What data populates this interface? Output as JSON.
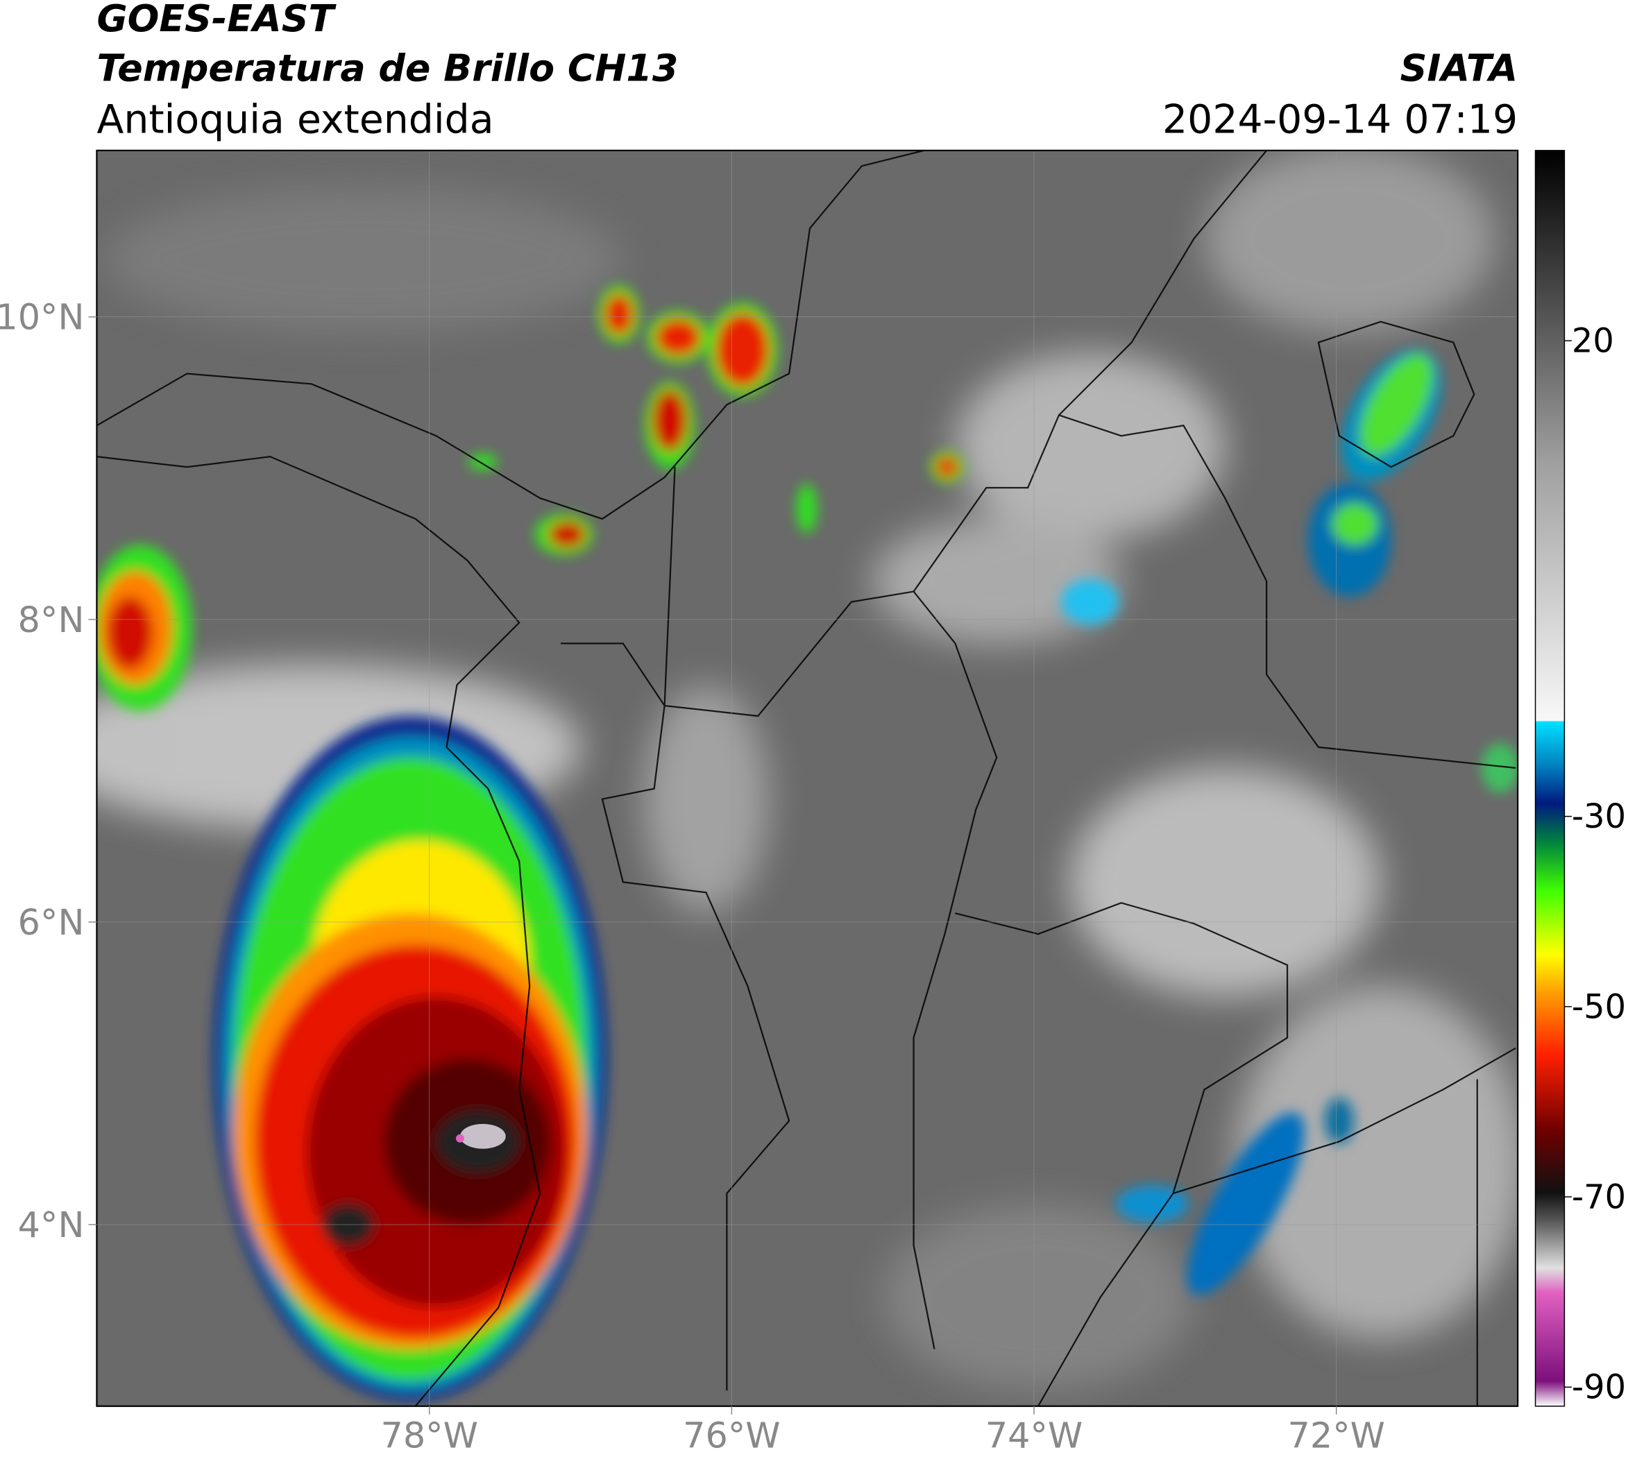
{
  "header": {
    "title": "GOES-EAST",
    "subtitle": "Temperatura de Brillo CH13",
    "region": "Antioquia extendida",
    "source": "SIATA",
    "datetime": "2024-09-14 07:19"
  },
  "map": {
    "xlim": [
      -80.2,
      -70.8
    ],
    "ylim": [
      2.8,
      11.1
    ],
    "xticks": [
      {
        "value": -78,
        "label": "78°W"
      },
      {
        "value": -76,
        "label": "76°W"
      },
      {
        "value": -74,
        "label": "74°W"
      },
      {
        "value": -72,
        "label": "72°W"
      }
    ],
    "yticks": [
      {
        "value": 10,
        "label": "10°N"
      },
      {
        "value": 8,
        "label": "8°N"
      },
      {
        "value": 6,
        "label": "6°N"
      },
      {
        "value": 4,
        "label": "4°N"
      }
    ],
    "grid": true
  },
  "colorbar": {
    "lim": [
      -92,
      40
    ],
    "ticks": [
      20,
      -30,
      -50,
      -70,
      -90
    ]
  }
}
